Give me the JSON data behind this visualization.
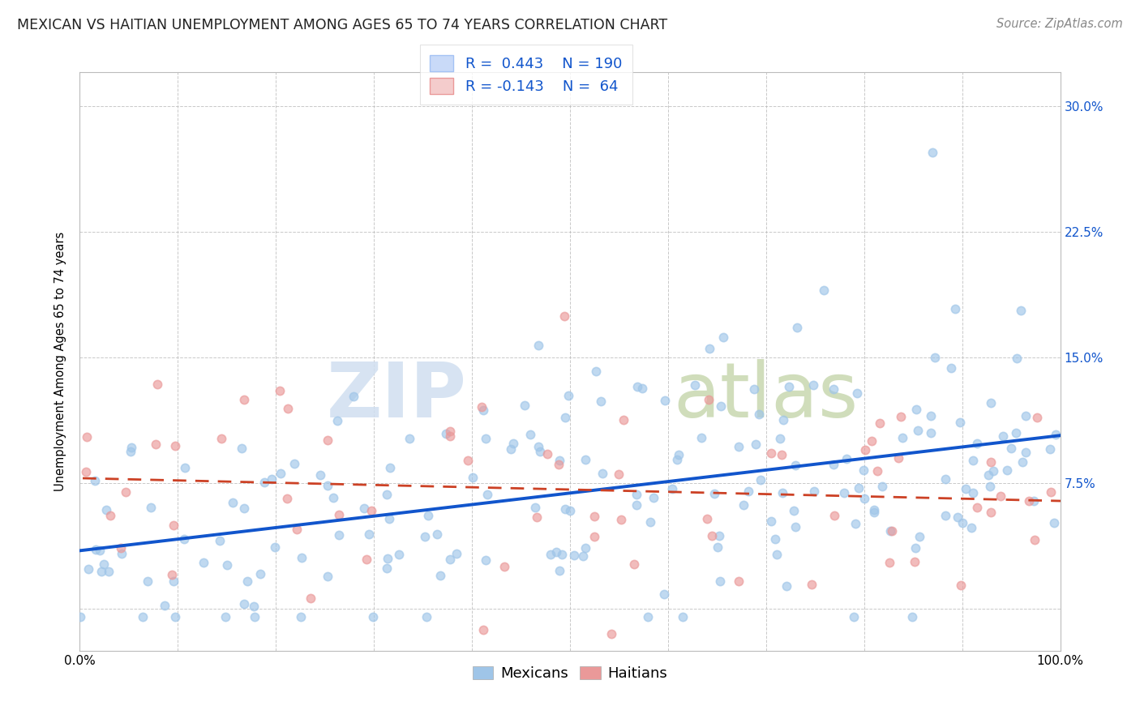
{
  "title": "MEXICAN VS HAITIAN UNEMPLOYMENT AMONG AGES 65 TO 74 YEARS CORRELATION CHART",
  "source": "Source: ZipAtlas.com",
  "ylabel": "Unemployment Among Ages 65 to 74 years",
  "xlim": [
    0.0,
    1.0
  ],
  "ylim": [
    -0.025,
    0.32
  ],
  "xticks": [
    0.0,
    0.1,
    0.2,
    0.3,
    0.4,
    0.5,
    0.6,
    0.7,
    0.8,
    0.9,
    1.0
  ],
  "xtick_labels": [
    "0.0%",
    "",
    "",
    "",
    "",
    "",
    "",
    "",
    "",
    "",
    "100.0%"
  ],
  "ytick_positions": [
    0.0,
    0.075,
    0.15,
    0.225,
    0.3
  ],
  "ytick_labels": [
    "",
    "7.5%",
    "15.0%",
    "22.5%",
    "30.0%"
  ],
  "mexican_r": 0.443,
  "mexican_n": 190,
  "haitian_r": -0.143,
  "haitian_n": 64,
  "mexican_color": "#9fc5e8",
  "haitian_color": "#ea9999",
  "mexican_line_color": "#1155cc",
  "haitian_line_color": "#cc4125",
  "background_color": "#ffffff",
  "watermark_zip": "ZIP",
  "watermark_atlas": "atlas",
  "grid_color": "#bbbbbb",
  "title_fontsize": 12.5,
  "axis_fontsize": 10.5,
  "tick_fontsize": 11,
  "legend_fontsize": 13,
  "source_fontsize": 10.5
}
